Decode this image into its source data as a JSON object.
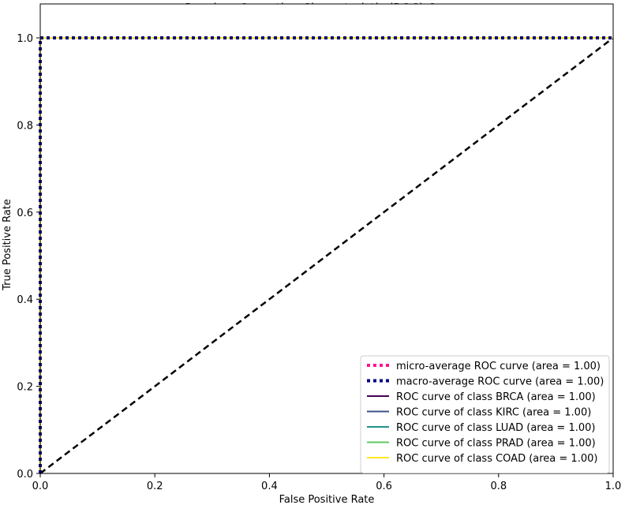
{
  "chart_data": {
    "type": "line",
    "title": "Receiver Operating Characteristic (ROC) Curves",
    "xlabel": "False Positive Rate",
    "ylabel": "True Positive Rate",
    "xlim": [
      0.0,
      1.0
    ],
    "ylim": [
      0.0,
      1.0
    ],
    "xticks": [
      "0.0",
      "0.2",
      "0.4",
      "0.6",
      "0.8",
      "1.0"
    ],
    "yticks": [
      "0.0",
      "0.2",
      "0.4",
      "0.6",
      "0.8",
      "1.0"
    ],
    "grid": false,
    "legend_position": "lower right",
    "series": [
      {
        "name": "micro-average ROC curve (area = 1.00)",
        "color": "#ff1493",
        "style": "dotted",
        "x": [
          0.0,
          0.0,
          1.0
        ],
        "y": [
          0.0,
          1.0,
          1.0
        ]
      },
      {
        "name": "macro-average ROC curve (area = 1.00)",
        "color": "#000080",
        "style": "dotted",
        "x": [
          0.0,
          0.0,
          1.0
        ],
        "y": [
          0.0,
          1.0,
          1.0
        ]
      },
      {
        "name": "ROC curve of class BRCA (area = 1.00)",
        "color": "#440154",
        "style": "solid",
        "x": [
          0.0,
          0.0,
          1.0
        ],
        "y": [
          0.0,
          1.0,
          1.0
        ]
      },
      {
        "name": "ROC curve of class KIRC (area = 1.00)",
        "color": "#3b528b",
        "style": "solid",
        "x": [
          0.0,
          0.0,
          1.0
        ],
        "y": [
          0.0,
          1.0,
          1.0
        ]
      },
      {
        "name": "ROC curve of class LUAD (area = 1.00)",
        "color": "#21918c",
        "style": "solid",
        "x": [
          0.0,
          0.0,
          1.0
        ],
        "y": [
          0.0,
          1.0,
          1.0
        ]
      },
      {
        "name": "ROC curve of class PRAD (area = 1.00)",
        "color": "#5ec962",
        "style": "solid",
        "x": [
          0.0,
          0.0,
          1.0
        ],
        "y": [
          0.0,
          1.0,
          1.0
        ]
      },
      {
        "name": "ROC curve of class COAD (area = 1.00)",
        "color": "#fde725",
        "style": "solid",
        "x": [
          0.0,
          0.0,
          1.0
        ],
        "y": [
          0.0,
          1.0,
          1.0
        ]
      }
    ],
    "reference_line": {
      "color": "#000000",
      "style": "dashed",
      "x": [
        0.0,
        1.0
      ],
      "y": [
        0.0,
        1.0
      ]
    }
  }
}
